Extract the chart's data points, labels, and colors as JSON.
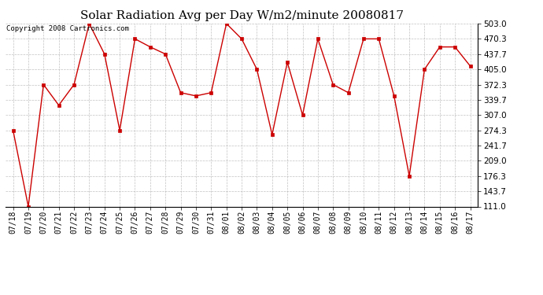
{
  "title": "Solar Radiation Avg per Day W/m2/minute 20080817",
  "copyright": "Copyright 2008 Cartronics.com",
  "dates": [
    "07/18",
    "07/19",
    "07/20",
    "07/21",
    "07/22",
    "07/23",
    "07/24",
    "07/25",
    "07/26",
    "07/27",
    "07/28",
    "07/29",
    "07/30",
    "07/31",
    "08/01",
    "08/02",
    "08/03",
    "08/04",
    "08/05",
    "08/06",
    "08/07",
    "08/08",
    "08/09",
    "08/10",
    "08/11",
    "08/12",
    "08/13",
    "08/14",
    "08/15",
    "08/16",
    "08/17"
  ],
  "values": [
    274.3,
    111.0,
    372.3,
    328.0,
    372.3,
    503.0,
    437.7,
    274.3,
    470.3,
    453.0,
    437.7,
    355.0,
    348.0,
    355.0,
    503.0,
    470.3,
    405.0,
    265.0,
    420.0,
    307.0,
    470.3,
    372.3,
    355.0,
    470.3,
    470.3,
    348.0,
    176.3,
    405.0,
    453.0,
    453.0,
    412.0
  ],
  "ylim_min": 111.0,
  "ylim_max": 503.0,
  "yticks": [
    111.0,
    143.7,
    176.3,
    209.0,
    241.7,
    274.3,
    307.0,
    339.7,
    372.3,
    405.0,
    437.7,
    470.3,
    503.0
  ],
  "line_color": "#cc0000",
  "marker": "s",
  "marker_size": 2.5,
  "bg_color": "#ffffff",
  "grid_color": "#999999",
  "title_fontsize": 11,
  "copyright_fontsize": 6.5,
  "tick_fontsize": 7,
  "ytick_fontsize": 7.5
}
